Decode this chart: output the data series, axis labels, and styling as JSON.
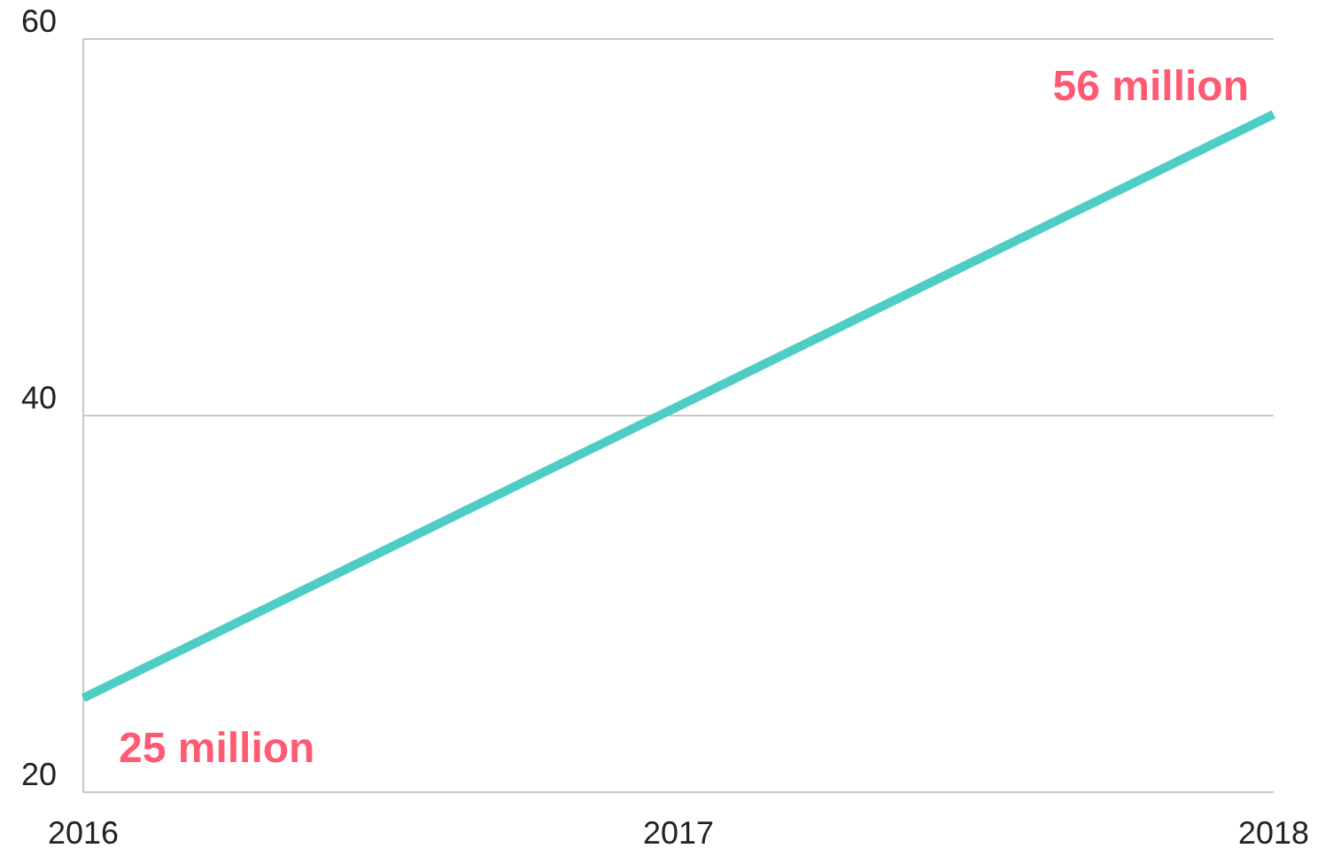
{
  "chart_data": {
    "type": "line",
    "x": [
      2016,
      2018
    ],
    "series": [
      {
        "color": "#4ecdc4",
        "values": [
          25,
          56
        ]
      }
    ],
    "xlim": [
      2016,
      2018
    ],
    "xticks": [
      2016,
      2017,
      2018
    ],
    "ylim": [
      20,
      60
    ],
    "yticks": [
      20,
      40,
      60
    ],
    "grid": "y",
    "marker": "none",
    "line_style": "solid",
    "annotations": [
      {
        "text": "25 million",
        "x": 2016,
        "y": 25
      },
      {
        "text": "56 million",
        "x": 2018,
        "y": 56
      }
    ]
  }
}
